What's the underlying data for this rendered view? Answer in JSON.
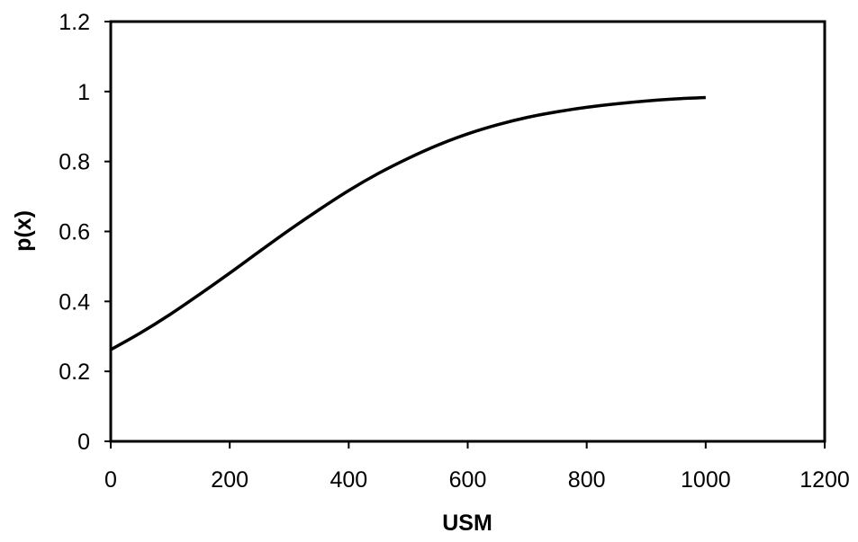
{
  "chart_data": {
    "type": "line",
    "title": "",
    "xlabel": "USM",
    "ylabel": "p(x)",
    "xlim": [
      0,
      1200
    ],
    "ylim": [
      0,
      1.2
    ],
    "xticks": [
      0,
      200,
      400,
      600,
      800,
      1000,
      1200
    ],
    "yticks": [
      0,
      0.2,
      0.4,
      0.6,
      0.8,
      1,
      1.2
    ],
    "xtick_labels": [
      "0",
      "200",
      "400",
      "600",
      "800",
      "1000",
      "1200"
    ],
    "ytick_labels": [
      "0",
      "0.2",
      "0.4",
      "0.6",
      "0.8",
      "1",
      "1.2"
    ],
    "grid": false,
    "legend": "none",
    "series": [
      {
        "color": "#000000",
        "x": [
          0,
          50,
          100,
          150,
          200,
          250,
          300,
          350,
          400,
          450,
          500,
          550,
          600,
          650,
          700,
          750,
          800,
          850,
          900,
          950,
          1000
        ],
        "y": [
          0.262,
          0.31,
          0.363,
          0.421,
          0.481,
          0.543,
          0.604,
          0.662,
          0.717,
          0.766,
          0.809,
          0.847,
          0.879,
          0.905,
          0.926,
          0.942,
          0.955,
          0.965,
          0.973,
          0.979,
          0.983
        ]
      }
    ]
  }
}
